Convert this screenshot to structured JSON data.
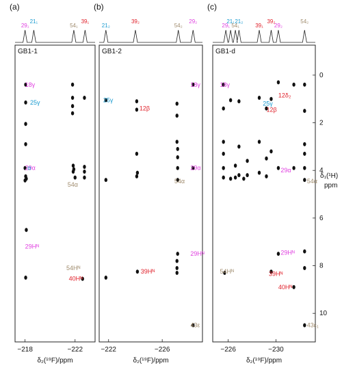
{
  "figure": {
    "y_axis_label_line1": "δ₁(¹H)",
    "y_axis_label_line2": "ppm"
  },
  "colors": {
    "magenta": "#e040e0",
    "cyan": "#1a9bd0",
    "red": "#e0202a",
    "tan": "#a08c6e",
    "black": "#111111"
  },
  "chart_data": [
    {
      "type": "scatter",
      "panel_letter": "(a)",
      "sample": "GB1-1",
      "xlabel": "δ₂(¹⁹F)/ppm",
      "xlim": [
        -217.2,
        -223.6
      ],
      "xticks": [
        -218,
        -222
      ],
      "ylim": [
        -0.8,
        11.2
      ],
      "top_spectrum_labels": [
        {
          "text": "29₁",
          "color": "magenta",
          "x": -218.0
        },
        {
          "text": "21₁",
          "color": "cyan",
          "x": -218.7
        },
        {
          "text": "54₁",
          "color": "tan",
          "x": -221.9
        },
        {
          "text": "39₁",
          "color": "red",
          "x": -222.8
        }
      ],
      "peaks": [
        {
          "x": -218.05,
          "y": 0.4
        },
        {
          "x": -218.05,
          "y": 1.15
        },
        {
          "x": -218.05,
          "y": 2.05
        },
        {
          "x": -218.05,
          "y": 2.9
        },
        {
          "x": -218.0,
          "y": 3.9
        },
        {
          "x": -218.05,
          "y": 4.25
        },
        {
          "x": -218.1,
          "y": 4.35
        },
        {
          "x": -218.0,
          "y": 4.42
        },
        {
          "x": -218.1,
          "y": 6.5
        },
        {
          "x": -218.05,
          "y": 8.5
        },
        {
          "x": -221.8,
          "y": 0.4
        },
        {
          "x": -221.8,
          "y": 0.95
        },
        {
          "x": -221.8,
          "y": 1.3
        },
        {
          "x": -221.8,
          "y": 1.6
        },
        {
          "x": -221.85,
          "y": 3.8
        },
        {
          "x": -221.9,
          "y": 3.95
        },
        {
          "x": -221.85,
          "y": 4.05
        },
        {
          "x": -222.75,
          "y": 0.95
        },
        {
          "x": -222.75,
          "y": 3.85
        },
        {
          "x": -222.75,
          "y": 4.05
        },
        {
          "x": -222.75,
          "y": 4.3
        },
        {
          "x": -222.0,
          "y": 4.3
        },
        {
          "x": -222.6,
          "y": 8.55
        }
      ],
      "annotations": [
        {
          "text": "18γ",
          "color": "magenta",
          "x": -218.0,
          "y": 0.4
        },
        {
          "text": "25γ",
          "color": "cyan",
          "x": -218.4,
          "y": 1.15
        },
        {
          "text": "29α",
          "color": "magenta",
          "x": -218.0,
          "y": 3.9
        },
        {
          "text": "α",
          "color": "cyan",
          "x": -218.2,
          "y": 3.9
        },
        {
          "text": "54α",
          "color": "tan",
          "x": -221.4,
          "y": 4.6
        },
        {
          "text": "29Hᴺ",
          "color": "magenta",
          "x": -218.0,
          "y": 7.2
        },
        {
          "text": "54Hᴺ",
          "color": "tan",
          "x": -221.3,
          "y": 8.1
        },
        {
          "text": "40Hᴺ",
          "color": "red",
          "x": -221.5,
          "y": 8.55
        }
      ]
    },
    {
      "type": "scatter",
      "panel_letter": "(b)",
      "sample": "GB1-2",
      "xlabel": "δ₂(¹⁹F)/ppm",
      "xlim": [
        -221.3,
        -229.0
      ],
      "xticks": [
        -222,
        -226
      ],
      "ylim": [
        -0.8,
        11.2
      ],
      "top_spectrum_labels": [
        {
          "text": "21₂",
          "color": "cyan",
          "x": -221.8
        },
        {
          "text": "39₂",
          "color": "red",
          "x": -224.0
        },
        {
          "text": "54₂",
          "color": "tan",
          "x": -227.2
        },
        {
          "text": "29₂",
          "color": "magenta",
          "x": -228.3
        }
      ],
      "peaks": [
        {
          "x": -224.1,
          "y": 1.1
        },
        {
          "x": -224.1,
          "y": 1.45
        },
        {
          "x": -224.1,
          "y": 3.3
        },
        {
          "x": -224.15,
          "y": 4.1
        },
        {
          "x": -224.1,
          "y": 4.25
        },
        {
          "x": -224.15,
          "y": 8.25
        },
        {
          "x": -221.8,
          "y": 1.05
        },
        {
          "x": -221.8,
          "y": 4.4
        },
        {
          "x": -221.8,
          "y": 8.5
        },
        {
          "x": -227.1,
          "y": 1.2
        },
        {
          "x": -227.1,
          "y": 1.7
        },
        {
          "x": -227.1,
          "y": 2.8
        },
        {
          "x": -227.15,
          "y": 3.1
        },
        {
          "x": -227.15,
          "y": 3.45
        },
        {
          "x": -227.15,
          "y": 3.9
        },
        {
          "x": -227.15,
          "y": 4.4
        },
        {
          "x": -227.15,
          "y": 7.5
        },
        {
          "x": -227.1,
          "y": 7.8
        },
        {
          "x": -227.1,
          "y": 8.1
        },
        {
          "x": -227.1,
          "y": 8.3
        },
        {
          "x": -228.3,
          "y": 0.4
        },
        {
          "x": -228.3,
          "y": 3.9
        },
        {
          "x": -228.3,
          "y": 10.5
        }
      ],
      "annotations": [
        {
          "text": "18γ",
          "color": "magenta",
          "x": -228.1,
          "y": 0.4
        },
        {
          "text": "25γ",
          "color": "cyan",
          "x": -221.6,
          "y": 1.05
        },
        {
          "text": "12β",
          "color": "red",
          "x": -224.3,
          "y": 1.4
        },
        {
          "text": "29α",
          "color": "magenta",
          "x": -228.1,
          "y": 3.9
        },
        {
          "text": "54α",
          "color": "tan",
          "x": -226.9,
          "y": 4.45
        },
        {
          "text": "29Hᴺ",
          "color": "magenta",
          "x": -228.1,
          "y": 7.5
        },
        {
          "text": "39Hᴺ",
          "color": "red",
          "x": -224.4,
          "y": 8.25
        },
        {
          "text": "43ε",
          "color": "tan",
          "x": -228.1,
          "y": 10.5
        }
      ]
    },
    {
      "type": "scatter",
      "panel_letter": "(c)",
      "sample": "GB1-d",
      "xlabel": "δ₂(¹⁹F)/ppm",
      "xlim": [
        -224.7,
        -233.3
      ],
      "xticks": [
        -226,
        -230
      ],
      "ylim": [
        -0.8,
        11.2
      ],
      "yticks": [
        0,
        2,
        4,
        6,
        8,
        10
      ],
      "top_spectrum_labels": [
        {
          "text": "29₁",
          "color": "magenta",
          "x": -225.8
        },
        {
          "text": "21₁",
          "color": "cyan",
          "x": -226.2
        },
        {
          "text": "54₁",
          "color": "tan",
          "x": -226.6
        },
        {
          "text": "21₂",
          "color": "cyan",
          "x": -226.9
        },
        {
          "text": "39₁",
          "color": "red",
          "x": -228.6
        },
        {
          "text": "39₂",
          "color": "red",
          "x": -229.6
        },
        {
          "text": "29₂",
          "color": "magenta",
          "x": -230.2
        },
        {
          "text": "54₂",
          "color": "tan",
          "x": -232.4
        }
      ],
      "peaks": [
        {
          "x": -225.6,
          "y": 0.4
        },
        {
          "x": -225.6,
          "y": 1.4
        },
        {
          "x": -225.6,
          "y": 2.8
        },
        {
          "x": -225.6,
          "y": 3.3
        },
        {
          "x": -225.6,
          "y": 3.9
        },
        {
          "x": -225.6,
          "y": 4.3
        },
        {
          "x": -225.7,
          "y": 8.3
        },
        {
          "x": -226.2,
          "y": 1.05
        },
        {
          "x": -226.2,
          "y": 4.35
        },
        {
          "x": -226.6,
          "y": 3.8
        },
        {
          "x": -226.6,
          "y": 4.3
        },
        {
          "x": -226.9,
          "y": 1.1
        },
        {
          "x": -226.9,
          "y": 3.0
        },
        {
          "x": -226.9,
          "y": 4.2
        },
        {
          "x": -227.3,
          "y": 4.35
        },
        {
          "x": -227.6,
          "y": 3.6
        },
        {
          "x": -227.6,
          "y": 4.2
        },
        {
          "x": -228.6,
          "y": 0.95
        },
        {
          "x": -228.6,
          "y": 2.8
        },
        {
          "x": -228.6,
          "y": 4.1
        },
        {
          "x": -229.2,
          "y": 1.4
        },
        {
          "x": -229.2,
          "y": 3.5
        },
        {
          "x": -229.2,
          "y": 4.25
        },
        {
          "x": -229.6,
          "y": 1.0
        },
        {
          "x": -229.6,
          "y": 3.2
        },
        {
          "x": -229.6,
          "y": 8.25
        },
        {
          "x": -230.2,
          "y": 0.3
        },
        {
          "x": -230.2,
          "y": 3.9
        },
        {
          "x": -230.2,
          "y": 7.5
        },
        {
          "x": -231.5,
          "y": 0.4
        },
        {
          "x": -231.5,
          "y": 3.9
        },
        {
          "x": -231.5,
          "y": 8.9
        },
        {
          "x": -232.4,
          "y": 0.4
        },
        {
          "x": -232.4,
          "y": 1.5
        },
        {
          "x": -232.4,
          "y": 2.9
        },
        {
          "x": -232.4,
          "y": 3.3
        },
        {
          "x": -232.4,
          "y": 3.9
        },
        {
          "x": -232.4,
          "y": 4.4
        },
        {
          "x": -232.4,
          "y": 7.4
        },
        {
          "x": -232.4,
          "y": 8.1
        },
        {
          "x": -232.4,
          "y": 10.5
        }
      ],
      "annotations": [
        {
          "text": "18γ",
          "color": "magenta",
          "x": -225.3,
          "y": 0.4
        },
        {
          "text": "12δ₂",
          "color": "red",
          "x": -230.2,
          "y": 0.85
        },
        {
          "text": "25γ",
          "color": "cyan",
          "x": -228.9,
          "y": 1.2
        },
        {
          "text": "12β",
          "color": "red",
          "x": -229.2,
          "y": 1.45
        },
        {
          "text": "29α",
          "color": "magenta",
          "x": -230.4,
          "y": 4.0
        },
        {
          "text": "54α",
          "color": "tan",
          "x": -232.6,
          "y": 4.45
        },
        {
          "text": "29Hᴺ",
          "color": "magenta",
          "x": -230.4,
          "y": 7.45
        },
        {
          "text": "54Hᴺ",
          "color": "tan",
          "x": -225.3,
          "y": 8.25
        },
        {
          "text": "39Hᴺ",
          "color": "red",
          "x": -229.4,
          "y": 8.35
        },
        {
          "text": "40Hᴺ",
          "color": "red",
          "x": -230.2,
          "y": 8.9
        },
        {
          "text": "43ε₁",
          "color": "tan",
          "x": -232.6,
          "y": 10.5
        }
      ]
    }
  ]
}
